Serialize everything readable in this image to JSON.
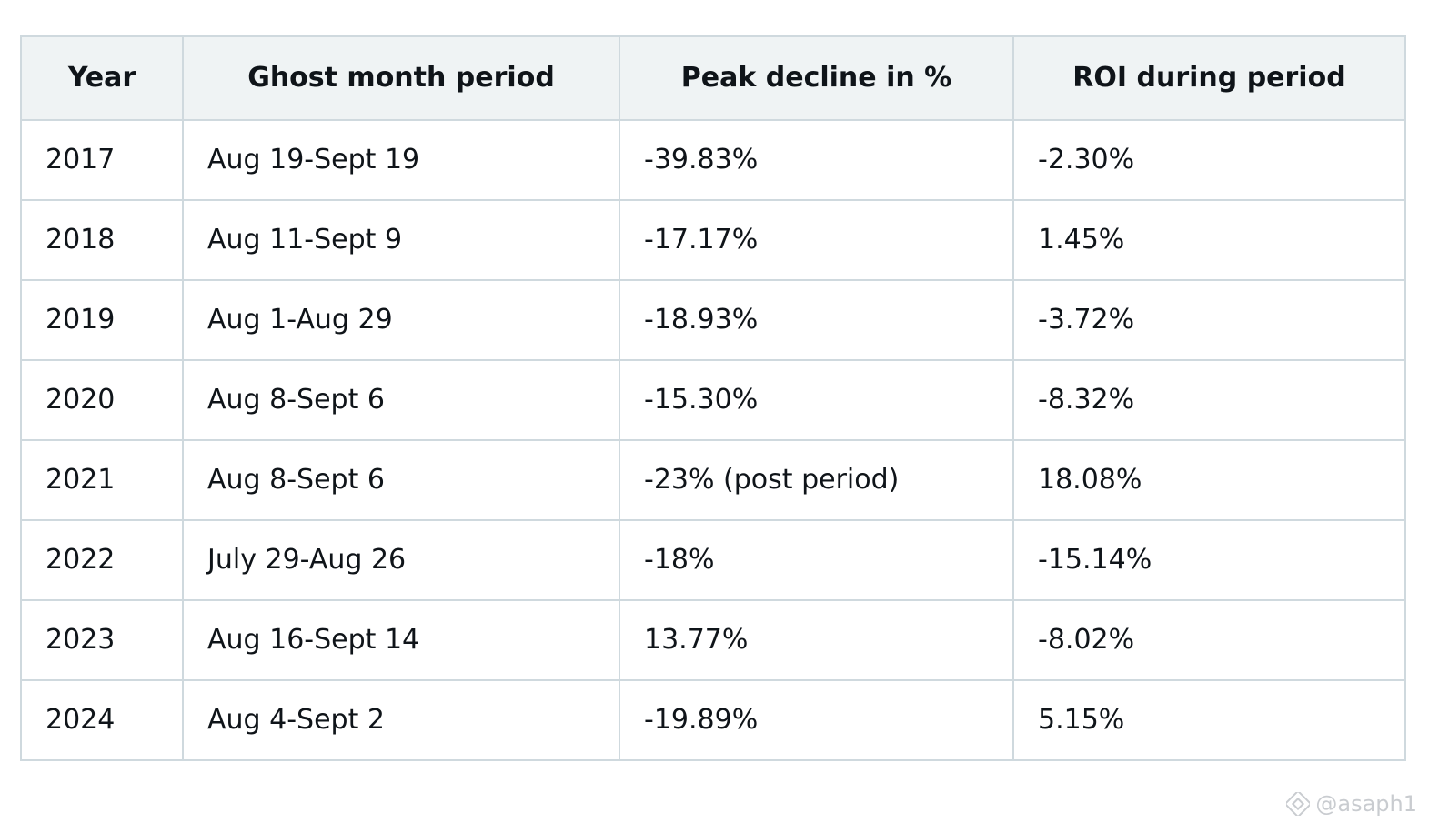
{
  "table": {
    "headers": [
      "Year",
      "Ghost month period",
      "Peak decline in %",
      "ROI during period"
    ],
    "rows": [
      [
        "2017",
        "Aug 19-Sept 19",
        "-39.83%",
        "-2.30%"
      ],
      [
        "2018",
        "Aug 11-Sept 9",
        "-17.17%",
        "1.45%"
      ],
      [
        "2019",
        "Aug 1-Aug 29",
        "-18.93%",
        "-3.72%"
      ],
      [
        "2020",
        "Aug 8-Sept 6",
        "-15.30%",
        "-8.32%"
      ],
      [
        "2021",
        "Aug 8-Sept 6",
        "-23% (post period)",
        "18.08%"
      ],
      [
        "2022",
        "July 29-Aug 26",
        "-18%",
        "-15.14%"
      ],
      [
        "2023",
        "Aug 16-Sept 14",
        "13.77%",
        "-8.02%"
      ],
      [
        "2024",
        "Aug 4-Sept 2",
        "-19.89%",
        "5.15%"
      ]
    ]
  },
  "watermark": {
    "icon": "binance-logo-icon",
    "handle": "@asaph1"
  },
  "colors": {
    "header_bg": "#eff3f4",
    "border": "#cfd9de",
    "text": "#0f1419",
    "watermark": "#c9ccd0"
  }
}
